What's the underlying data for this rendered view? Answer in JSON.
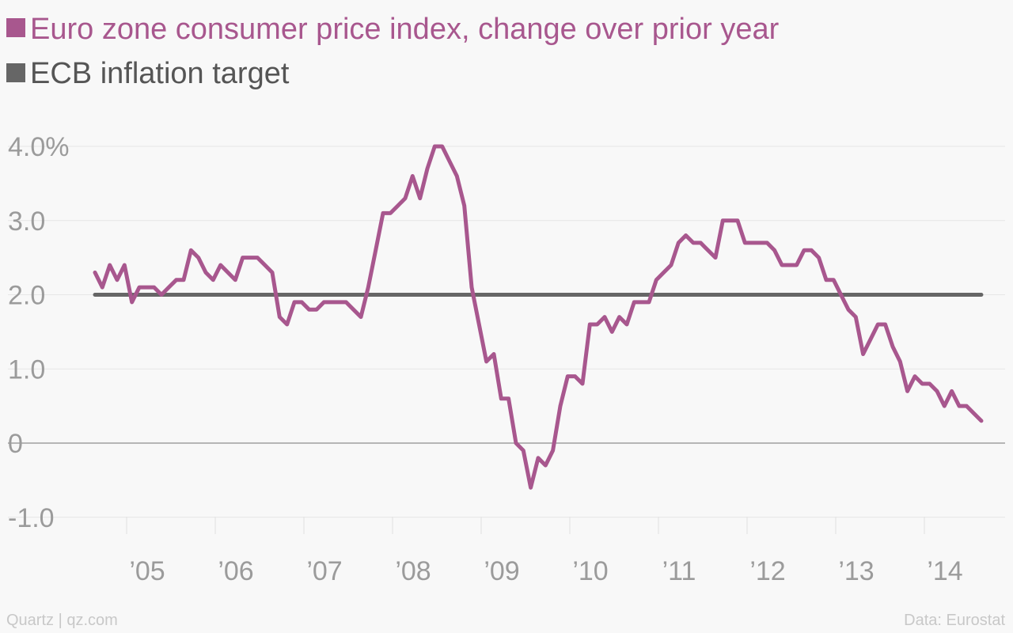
{
  "chart_data": {
    "type": "line",
    "title": "",
    "xlabel": "",
    "ylabel": "",
    "x_start": "2004-08",
    "x_frequency": "monthly",
    "x_tick_labels": [
      "’05",
      "’06",
      "’07",
      "’08",
      "’09",
      "’10",
      "’11",
      "’12",
      "’13",
      "’14"
    ],
    "y_tick_labels": [
      "4.0%",
      "3.0",
      "2.0",
      "1.0",
      "0",
      "-1.0"
    ],
    "y_tick_values": [
      4,
      3,
      2,
      1,
      0,
      -1
    ],
    "ylim": [
      -1.5,
      4.5
    ],
    "grid": "horizontal",
    "legend_position": "top-left",
    "series": [
      {
        "name": "Euro zone consumer price index, change over prior year",
        "color": "#a8578e",
        "values": [
          2.3,
          2.1,
          2.4,
          2.2,
          2.4,
          1.9,
          2.1,
          2.1,
          2.1,
          2.0,
          2.1,
          2.2,
          2.2,
          2.6,
          2.5,
          2.3,
          2.2,
          2.4,
          2.3,
          2.2,
          2.5,
          2.5,
          2.5,
          2.4,
          2.3,
          1.7,
          1.6,
          1.9,
          1.9,
          1.8,
          1.8,
          1.9,
          1.9,
          1.9,
          1.9,
          1.8,
          1.7,
          2.1,
          2.6,
          3.1,
          3.1,
          3.2,
          3.3,
          3.6,
          3.3,
          3.7,
          4.0,
          4.0,
          3.8,
          3.6,
          3.2,
          2.1,
          1.6,
          1.1,
          1.2,
          0.6,
          0.6,
          0.0,
          -0.1,
          -0.6,
          -0.2,
          -0.3,
          -0.1,
          0.5,
          0.9,
          0.9,
          0.8,
          1.6,
          1.6,
          1.7,
          1.5,
          1.7,
          1.6,
          1.9,
          1.9,
          1.9,
          2.2,
          2.3,
          2.4,
          2.7,
          2.8,
          2.7,
          2.7,
          2.6,
          2.5,
          3.0,
          3.0,
          3.0,
          2.7,
          2.7,
          2.7,
          2.7,
          2.6,
          2.4,
          2.4,
          2.4,
          2.6,
          2.6,
          2.5,
          2.2,
          2.2,
          2.0,
          1.8,
          1.7,
          1.2,
          1.4,
          1.6,
          1.6,
          1.3,
          1.1,
          0.7,
          0.9,
          0.8,
          0.8,
          0.7,
          0.5,
          0.7,
          0.5,
          0.5,
          0.4,
          0.3
        ]
      },
      {
        "name": "ECB inflation target",
        "color": "#666666",
        "constant": 2.0
      }
    ]
  },
  "footer": {
    "source_left": "Quartz | qz.com",
    "source_right": "Data: Eurostat"
  }
}
